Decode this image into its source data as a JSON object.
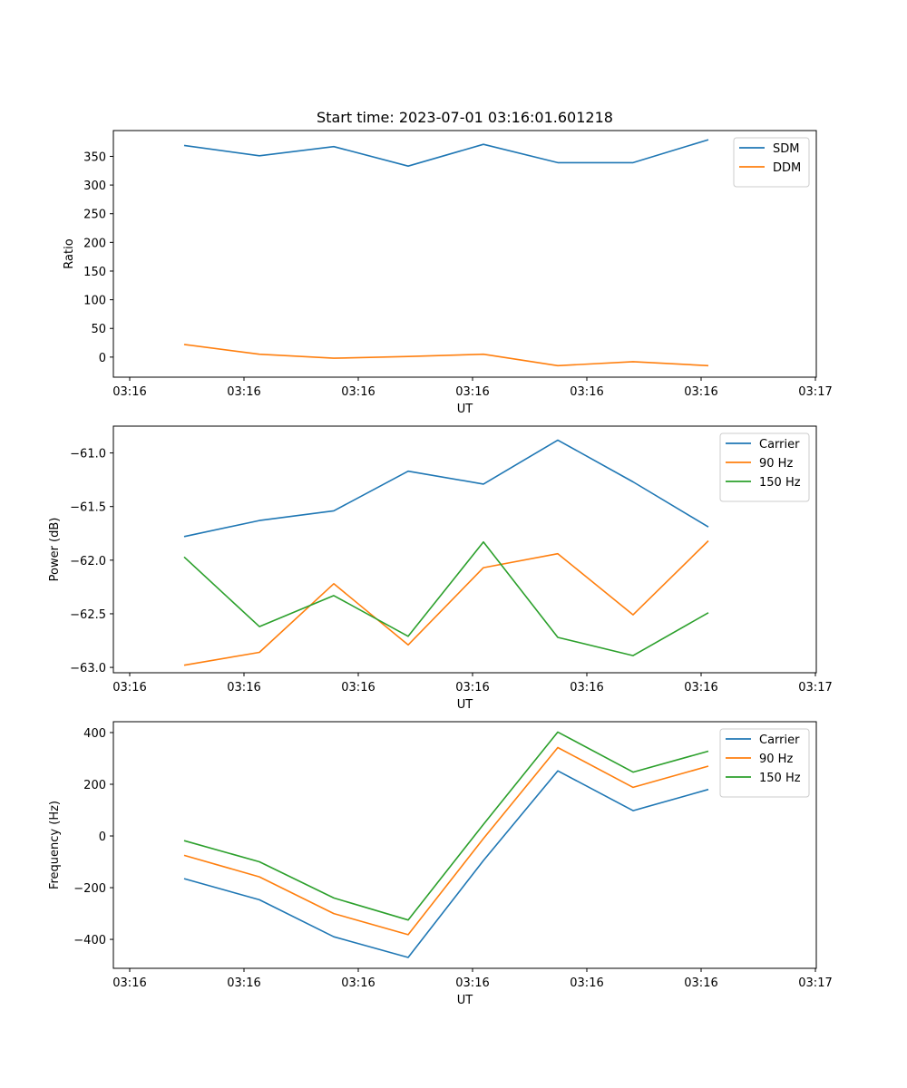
{
  "chart_data": [
    {
      "type": "line",
      "title": "Start time: 2023-07-01 03:16:01.601218",
      "xlabel": "UT",
      "ylabel": "Ratio",
      "x_tick_labels": [
        "03:16",
        "03:16",
        "03:16",
        "03:16",
        "03:16",
        "03:16",
        "03:17"
      ],
      "y_ticks": [
        0,
        50,
        100,
        150,
        200,
        250,
        300,
        350
      ],
      "ylim": [
        -35,
        395
      ],
      "legend_position": "top-right",
      "series": [
        {
          "name": "SDM",
          "color": "#1f77b4",
          "values": [
            369,
            351,
            367,
            333,
            371,
            339,
            339,
            379
          ]
        },
        {
          "name": "DDM",
          "color": "#ff7f0e",
          "values": [
            22,
            5,
            -2,
            1,
            5,
            -15,
            -8,
            -15
          ]
        }
      ]
    },
    {
      "type": "line",
      "title": "",
      "xlabel": "UT",
      "ylabel": "Power (dB)",
      "x_tick_labels": [
        "03:16",
        "03:16",
        "03:16",
        "03:16",
        "03:16",
        "03:16",
        "03:17"
      ],
      "y_ticks": [
        -61.0,
        -61.5,
        -62.0,
        -62.5,
        -63.0
      ],
      "y_tick_labels": [
        "−61.0",
        "−61.5",
        "−62.0",
        "−62.5",
        "−63.0"
      ],
      "ylim": [
        -63.05,
        -60.75
      ],
      "legend_position": "top-right",
      "series": [
        {
          "name": "Carrier",
          "color": "#1f77b4",
          "values": [
            -61.78,
            -61.63,
            -61.54,
            -61.17,
            -61.29,
            -60.88,
            -61.27,
            -61.69
          ]
        },
        {
          "name": "90 Hz",
          "color": "#ff7f0e",
          "values": [
            -62.98,
            -62.86,
            -62.22,
            -62.79,
            -62.07,
            -61.94,
            -62.51,
            -61.82
          ]
        },
        {
          "name": "150 Hz",
          "color": "#2ca02c",
          "values": [
            -61.97,
            -62.62,
            -62.33,
            -62.71,
            -61.83,
            -62.72,
            -62.89,
            -62.49
          ]
        }
      ]
    },
    {
      "type": "line",
      "title": "",
      "xlabel": "UT",
      "ylabel": "Frequency (Hz)",
      "x_tick_labels": [
        "03:16",
        "03:16",
        "03:16",
        "03:16",
        "03:16",
        "03:16",
        "03:17"
      ],
      "y_ticks": [
        400,
        200,
        0,
        -200,
        -400
      ],
      "y_tick_labels": [
        "400",
        "200",
        "0",
        "−200",
        "−400"
      ],
      "ylim": [
        -512,
        442
      ],
      "legend_position": "top-right",
      "series": [
        {
          "name": "Carrier",
          "color": "#1f77b4",
          "values": [
            -165,
            -247,
            -390,
            -470,
            -95,
            252,
            98,
            180
          ]
        },
        {
          "name": "90 Hz",
          "color": "#ff7f0e",
          "values": [
            -75,
            -158,
            -300,
            -382,
            -10,
            342,
            188,
            270
          ]
        },
        {
          "name": "150 Hz",
          "color": "#2ca02c",
          "values": [
            -18,
            -100,
            -240,
            -325,
            45,
            402,
            247,
            328
          ]
        }
      ]
    }
  ]
}
